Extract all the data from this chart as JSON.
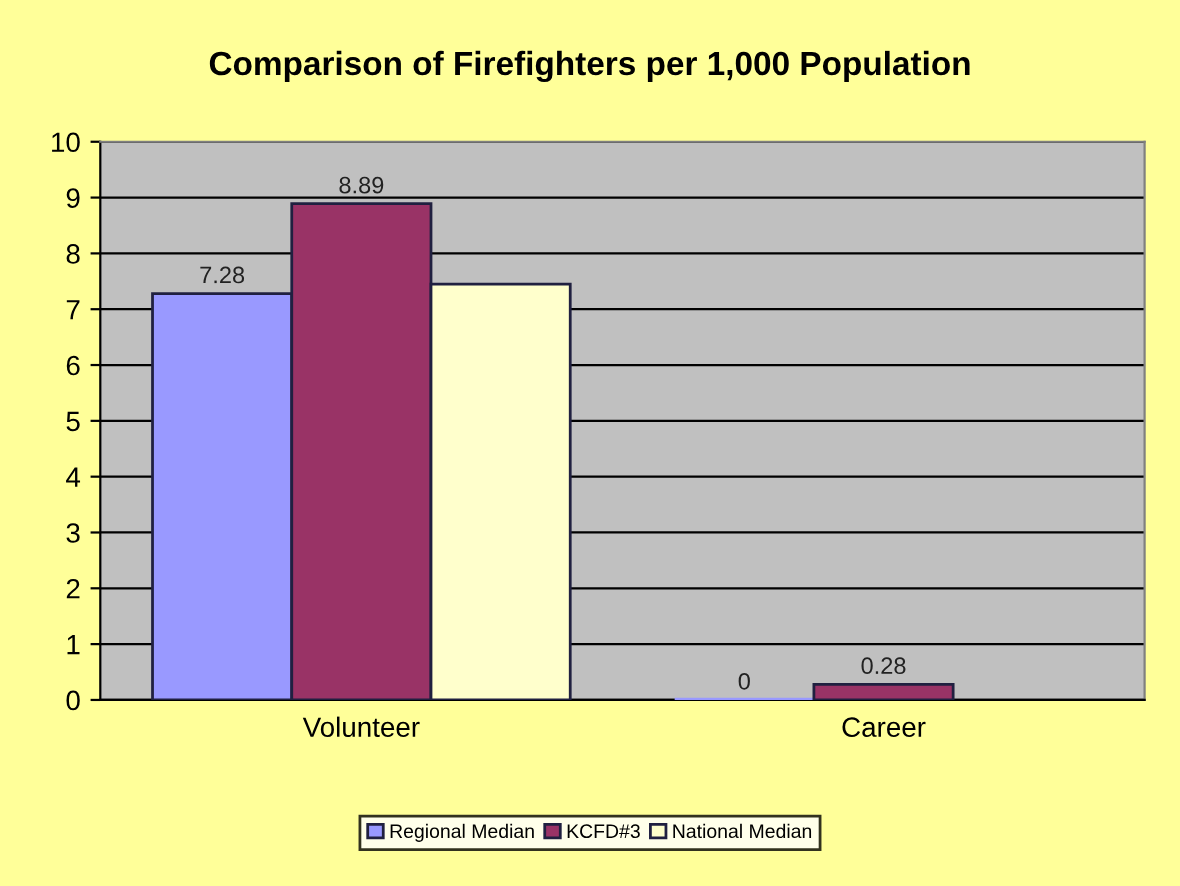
{
  "chart_data": {
    "type": "bar",
    "title": "Comparison of Firefighters per 1,000 Population",
    "categories": [
      "Volunteer",
      "Career"
    ],
    "series": [
      {
        "name": "Regional Median",
        "color": "#9999ff",
        "values": [
          7.28,
          0
        ],
        "value_labels": [
          "7.28",
          "0"
        ]
      },
      {
        "name": "KCFD#3",
        "color": "#993366",
        "values": [
          8.89,
          0.28
        ],
        "value_labels": [
          "8.89",
          "0.28"
        ]
      },
      {
        "name": "National Median",
        "color": "#ffffcc",
        "values": [
          7.45,
          null
        ],
        "value_labels": [
          null,
          null
        ]
      }
    ],
    "ylim": [
      0,
      10
    ],
    "yticks": [
      0,
      1,
      2,
      3,
      4,
      5,
      6,
      7,
      8,
      9,
      10
    ],
    "grid": "y",
    "legend": "bottom"
  }
}
